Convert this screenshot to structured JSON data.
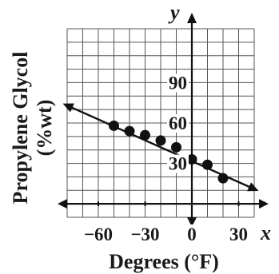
{
  "chart_data": {
    "type": "scatter",
    "xlabel": "Degrees (°F)",
    "ylabel_line1": "Propylene Glycol",
    "ylabel_line2": "(%wt)",
    "x_axis_var": "x",
    "y_axis_var": "y",
    "xlim": [
      -80,
      40
    ],
    "ylim": [
      -10,
      130
    ],
    "grid": true,
    "grid_step_x": 10,
    "grid_step_y": 10,
    "x_ticks": [
      {
        "value": -60,
        "label": "−60"
      },
      {
        "value": -30,
        "label": "−30"
      },
      {
        "value": 0,
        "label": "0"
      },
      {
        "value": 30,
        "label": "30"
      }
    ],
    "y_ticks": [
      {
        "value": 30,
        "label": "30"
      },
      {
        "value": 60,
        "label": "60"
      },
      {
        "value": 90,
        "label": "90"
      }
    ],
    "points": [
      {
        "x": -50,
        "y": 58
      },
      {
        "x": -40,
        "y": 54
      },
      {
        "x": -30,
        "y": 51
      },
      {
        "x": -20,
        "y": 47
      },
      {
        "x": -10,
        "y": 42
      },
      {
        "x": 0,
        "y": 33
      },
      {
        "x": 10,
        "y": 29
      },
      {
        "x": 20,
        "y": 19
      }
    ],
    "trend_line": {
      "x1": -80,
      "y1": 73,
      "x2": 40,
      "y2": 11
    }
  }
}
